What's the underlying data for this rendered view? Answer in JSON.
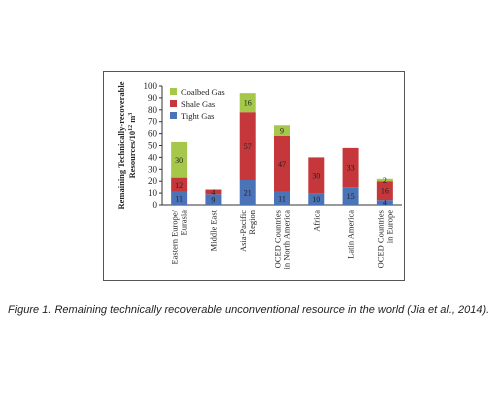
{
  "caption": "Figure 1. Remaining technically recoverable unconventional resource in the world (Jia et al., 2014).",
  "chart_data": {
    "type": "bar",
    "stacked": true,
    "title": "",
    "ylabel": [
      "Remaining Technically-recoverable",
      "Resources/10",
      "12",
      "m",
      "3"
    ],
    "ylim": [
      0,
      100
    ],
    "yticks": [
      0,
      10,
      20,
      30,
      40,
      50,
      60,
      70,
      80,
      90,
      100
    ],
    "grid": false,
    "legend_position": "top-left",
    "categories": [
      [
        "Eastern Europe/",
        "Eurasia"
      ],
      [
        "Middle East"
      ],
      [
        "Asia-Pacific",
        "Region"
      ],
      [
        "OCED Countries",
        "in North America"
      ],
      [
        "Africa"
      ],
      [
        "Latin America"
      ],
      [
        "OCED Countries",
        "in Europe"
      ]
    ],
    "series": [
      {
        "name": "Tight Gas",
        "color": "#4a73b8",
        "values": [
          11,
          9,
          21,
          11,
          10,
          15,
          4
        ]
      },
      {
        "name": "Shale Gas",
        "color": "#c5373a",
        "values": [
          12,
          4,
          57,
          47,
          30,
          33,
          16
        ]
      },
      {
        "name": "Coalbed Gas",
        "color": "#a6c84a",
        "values": [
          30,
          0,
          16,
          9,
          0,
          0,
          2
        ]
      }
    ],
    "legend_order": [
      "Coalbed Gas",
      "Shale Gas",
      "Tight Gas"
    ]
  }
}
